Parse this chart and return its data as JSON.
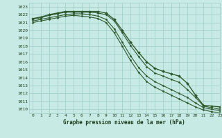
{
  "title": "Graphe pression niveau de la mer (hPa)",
  "bg_color": "#c8eae4",
  "grid_color": "#9dcdc6",
  "line_color": "#2d5a2d",
  "xlim": [
    -0.5,
    23
  ],
  "ylim": [
    1009.5,
    1023.5
  ],
  "xticks": [
    0,
    1,
    2,
    3,
    4,
    5,
    6,
    7,
    8,
    9,
    10,
    11,
    12,
    13,
    14,
    15,
    16,
    17,
    18,
    19,
    20,
    21,
    22,
    23
  ],
  "yticks": [
    1010,
    1011,
    1012,
    1013,
    1014,
    1015,
    1016,
    1017,
    1018,
    1019,
    1020,
    1021,
    1022,
    1023
  ],
  "series": [
    {
      "x": [
        0,
        1,
        2,
        3,
        4,
        5,
        6,
        7,
        8,
        9,
        10,
        11,
        12,
        13,
        14,
        15,
        16,
        17,
        18,
        19,
        20,
        21,
        22,
        23
      ],
      "y": [
        1021.5,
        1021.7,
        1022.0,
        1022.2,
        1022.4,
        1022.4,
        1022.4,
        1022.4,
        1022.4,
        1022.2,
        1021.4,
        1020.0,
        1018.5,
        1017.2,
        1016.0,
        1015.2,
        1014.8,
        1014.5,
        1014.2,
        1013.3,
        1011.8,
        1010.5,
        1010.4,
        1010.3
      ],
      "marker": "D",
      "markersize": 2.0,
      "linewidth": 1.0,
      "zorder": 5
    },
    {
      "x": [
        0,
        1,
        2,
        3,
        4,
        5,
        6,
        7,
        8,
        9,
        10,
        11,
        12,
        13,
        14,
        15,
        16,
        17,
        18,
        19,
        20,
        21,
        22,
        23
      ],
      "y": [
        1021.4,
        1021.6,
        1021.9,
        1022.1,
        1022.3,
        1022.3,
        1022.3,
        1022.3,
        1022.2,
        1022.0,
        1021.2,
        1019.7,
        1018.1,
        1016.7,
        1015.4,
        1014.6,
        1014.2,
        1013.8,
        1013.4,
        1012.5,
        1011.5,
        1010.4,
        1010.2,
        1010.0
      ],
      "marker": "D",
      "markersize": 1.5,
      "linewidth": 0.8,
      "zorder": 4
    },
    {
      "x": [
        0,
        1,
        2,
        3,
        4,
        5,
        6,
        7,
        8,
        9,
        10,
        11,
        12,
        13,
        14,
        15,
        16,
        17,
        18,
        19,
        20,
        21,
        22,
        23
      ],
      "y": [
        1021.2,
        1021.4,
        1021.6,
        1021.8,
        1022.0,
        1022.1,
        1022.1,
        1022.0,
        1021.8,
        1021.4,
        1020.2,
        1018.5,
        1016.8,
        1015.3,
        1014.2,
        1013.5,
        1013.0,
        1012.5,
        1012.0,
        1011.5,
        1010.8,
        1010.2,
        1010.0,
        1009.8
      ],
      "marker": "D",
      "markersize": 1.5,
      "linewidth": 0.8,
      "zorder": 3
    },
    {
      "x": [
        0,
        1,
        2,
        3,
        4,
        5,
        6,
        7,
        8,
        9,
        10,
        11,
        12,
        13,
        14,
        15,
        16,
        17,
        18,
        19,
        20,
        21,
        22,
        23
      ],
      "y": [
        1021.0,
        1021.2,
        1021.4,
        1021.6,
        1021.8,
        1021.9,
        1021.8,
        1021.7,
        1021.5,
        1021.0,
        1019.7,
        1018.0,
        1016.2,
        1014.7,
        1013.5,
        1012.8,
        1012.3,
        1011.8,
        1011.3,
        1010.8,
        1010.3,
        1009.9,
        1009.7,
        1009.5
      ],
      "marker": "D",
      "markersize": 1.5,
      "linewidth": 0.8,
      "zorder": 2
    }
  ]
}
